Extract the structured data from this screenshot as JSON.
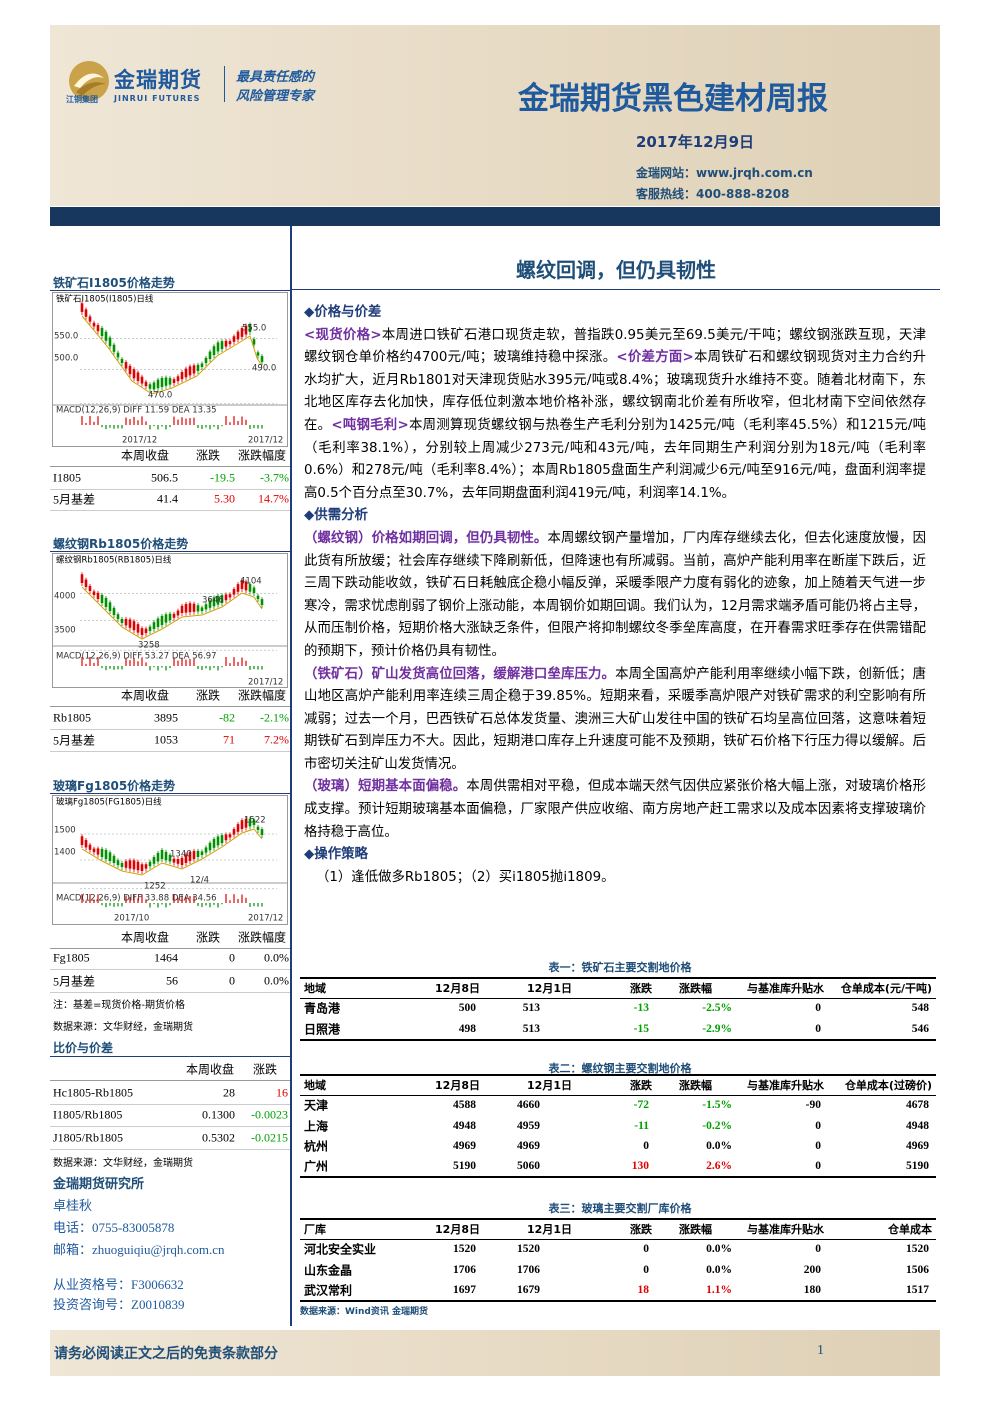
{
  "header": {
    "logo_name": "金瑞期货",
    "logo_en": "JINRUI FUTURES",
    "logo_group": "江铜集团",
    "slogan": [
      "最具责任感的",
      "风险管理专家"
    ],
    "title": "金瑞期货黑色建材周报",
    "date": "2017年12月9日",
    "website": "金瑞网站：www.jrqh.com.cn",
    "hotline": "客服热线：400-888-8208"
  },
  "sidebar": {
    "charts": [
      {
        "title": "铁矿石I1805价格走势",
        "labels": [
          "铁矿石I1805(I1805)日线",
          "550.0",
          "500.0",
          "555.0",
          "490.0",
          "470.0",
          "MACD(12,26,9) DIFF 11.59 DEA 13.35",
          "2017/12",
          "2017/12"
        ],
        "table": {
          "header": [
            "本周收盘",
            "涨跌",
            "涨跌幅度"
          ],
          "rows": [
            [
              "I1805",
              "506.5",
              "-19.5",
              "-3.7%"
            ],
            [
              "5月基差",
              "41.4",
              "5.30",
              "14.7%"
            ]
          ]
        }
      },
      {
        "title": "螺纹钢Rb1805价格走势",
        "labels": [
          "螺纹钢Rb1805(RB1805)日线",
          "4000",
          "3500",
          "4104",
          "3646",
          "3258",
          "MACD(12,26,9) DIFF 53.27 DEA 56.97",
          "2017/12"
        ],
        "table": {
          "header": [
            "本周收盘",
            "涨跌",
            "涨跌幅度"
          ],
          "rows": [
            [
              "Rb1805",
              "3895",
              "-82",
              "-2.1%"
            ],
            [
              "5月基差",
              "1053",
              "71",
              "7.2%"
            ]
          ]
        }
      },
      {
        "title": "玻璃Fg1805价格走势",
        "labels": [
          "玻璃Fg1805(FG1805)日线",
          "1500",
          "1400",
          "1522",
          "1340",
          "1252",
          "12/4",
          "MACD(12,26,9) DIFF 33.88 DEA 34.56",
          "2017/10",
          "2017/12"
        ],
        "table": {
          "header": [
            "本周收盘",
            "涨跌",
            "涨跌幅度"
          ],
          "rows": [
            [
              "Fg1805",
              "1464",
              "0",
              "0.0%"
            ],
            [
              "5月基差",
              "56",
              "0",
              "0.0%"
            ]
          ]
        }
      }
    ],
    "notes": [
      "注：基差=现货价格-期货价格",
      "数据来源：文华财经，金瑞期货"
    ],
    "ratio": {
      "title": "比价与价差",
      "header": [
        "本周收盘",
        "涨跌"
      ],
      "rows": [
        [
          "Hc1805-Rb1805",
          "28",
          "16"
        ],
        [
          "I1805/Rb1805",
          "0.1300",
          "-0.0023"
        ],
        [
          "J1805/Rb1805",
          "0.5302",
          "-0.0215"
        ]
      ],
      "source": "数据来源：文华财经，金瑞期货"
    },
    "contact": {
      "org": "金瑞期货研究所",
      "name": "卓桂秋",
      "phone": "电话：0755-83005878",
      "email": "邮箱：zhuoguiqiu@jrqh.com.cn",
      "license": "从业资格号：F3006632",
      "advisory": "投资咨询号：Z0010839"
    }
  },
  "main": {
    "headline": "螺纹回调，但仍具韧性",
    "sections": [
      {
        "heading": "◆价格与价差",
        "paragraphs": [
          [
            "<现货价格>",
            "本周进口铁矿石港口现货走软，普指跌0.95美元至69.5美元/干吨；螺纹钢涨跌互现，天津螺纹钢仓单价格约4700元/吨；玻璃维持稳中探涨。",
            "<价差方面>",
            "本周铁矿石和螺纹钢现货对主力合约升水均扩大，近月Rb1801对天津现货贴水395元/吨或8.4%；玻璃现货升水维持不变。随着北材南下，东北地区库存去化加快，库存低位刺激本地价格补涨，螺纹钢南北价差有所收窄，但北材南下空间依然存在。",
            "<吨钢毛利>",
            "本周测算现货螺纹钢与热卷生产毛利分别为1425元/吨（毛利率45.5%）和1215元/吨（毛利率38.1%），分别较上周减少273元/吨和43元/吨，去年同期生产利润分别为18元/吨（毛利率0.6%）和278元/吨（毛利率8.4%）；本周Rb1805盘面生产利润减少6元/吨至916元/吨，盘面利润率提高0.5个百分点至30.7%，去年同期盘面利润419元/吨，利润率14.1%。"
          ]
        ]
      },
      {
        "heading": "◆供需分析",
        "paragraphs": [
          [
            "（螺纹钢）价格如期回调，但仍具韧性。",
            "本周螺纹钢产量增加，厂内库存继续去化，但去化速度放慢，因此货有所放缓；社会库存继续下降刷新低，但降速也有所减弱。当前，高炉产能利用率在断崖下跌后，近三周下跌动能收敛，铁矿石日耗触底企稳小幅反弹，采暖季限产力度有弱化的迹象，加上随着天气进一步寒冷，需求忧虑削弱了钢价上涨动能，本周钢价如期回调。我们认为，12月需求端矛盾可能仍将占主导，从而压制价格，短期价格大涨缺乏条件，但限产将抑制螺纹冬季垒库高度，在开春需求旺季存在供需错配的预期下，预计价格仍具有韧性。"
          ],
          [
            "（铁矿石）矿山发货高位回落，缓解港口垒库压力。",
            "本周全国高炉产能利用率继续小幅下跌，创新低；唐山地区高炉产能利用率连续三周企稳于39.85%。短期来看，采暖季高炉限产对铁矿需求的利空影响有所减弱；过去一个月，巴西铁矿石总体发货量、澳洲三大矿山发往中国的铁矿石均呈高位回落，这意味着短期铁矿石到岸压力不大。因此，短期港口库存上升速度可能不及预期，铁矿石价格下行压力得以缓解。后市密切关注矿山发货情况。"
          ],
          [
            "（玻璃）短期基本面偏稳。",
            "本周供需相对平稳，但成本端天然气因供应紧张价格大幅上涨，对玻璃价格形成支撑。预计短期玻璃基本面偏稳，厂家限产供应收缩、南方房地产赶工需求以及成本因素将支撑玻璃价格持稳于高位。"
          ]
        ]
      },
      {
        "heading": "◆操作策略",
        "paragraphs": [
          [
            "（1）逢低做多Rb1805；（2）买i1805抛i1809。"
          ]
        ]
      }
    ],
    "tables": [
      {
        "title": "表一：铁矿石主要交割地价格",
        "header": [
          "地域",
          "12月8日",
          "12月1日",
          "涨跌",
          "涨跌幅",
          "与基准库升贴水",
          "仓单成本(元/干吨)"
        ],
        "rows": [
          [
            "青岛港",
            "500",
            "513",
            "-13",
            "-2.5%",
            "0",
            "548"
          ],
          [
            "日照港",
            "498",
            "513",
            "-15",
            "-2.9%",
            "0",
            "546"
          ]
        ]
      },
      {
        "title": "表二：螺纹钢主要交割地价格",
        "header": [
          "地域",
          "12月8日",
          "12月1日",
          "涨跌",
          "涨跌幅",
          "与基准库升贴水",
          "仓单成本(过磅价)"
        ],
        "rows": [
          [
            "天津",
            "4588",
            "4660",
            "-72",
            "-1.5%",
            "-90",
            "4678"
          ],
          [
            "上海",
            "4948",
            "4959",
            "-11",
            "-0.2%",
            "0",
            "4948"
          ],
          [
            "杭州",
            "4969",
            "4969",
            "0",
            "0.0%",
            "0",
            "4969"
          ],
          [
            "广州",
            "5190",
            "5060",
            "130",
            "2.6%",
            "0",
            "5190"
          ]
        ]
      },
      {
        "title": "表三：玻璃主要交割厂库价格",
        "header": [
          "厂库",
          "12月8日",
          "12月1日",
          "涨跌",
          "涨跌幅",
          "与基准库升贴水",
          "仓单成本"
        ],
        "rows": [
          [
            "河北安全实业",
            "1520",
            "1520",
            "0",
            "0.0%",
            "0",
            "1520"
          ],
          [
            "山东金晶",
            "1706",
            "1706",
            "0",
            "0.0%",
            "200",
            "1506"
          ],
          [
            "武汉常利",
            "1697",
            "1679",
            "18",
            "1.1%",
            "180",
            "1517"
          ]
        ]
      }
    ],
    "source": "数据来源：Wind资讯 金瑞期货"
  },
  "footer": {
    "disclaimer": "请务必阅读正文之后的免责条款部分",
    "page": "1"
  }
}
